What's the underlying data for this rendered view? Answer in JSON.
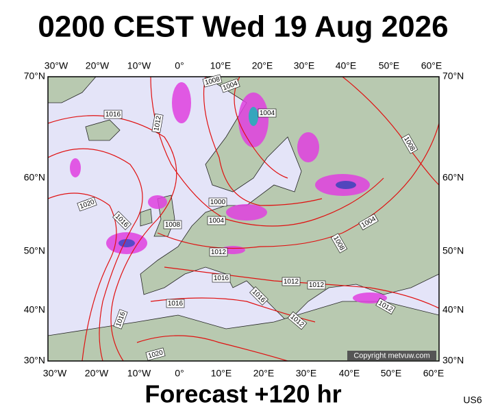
{
  "header": {
    "title": "0200 CEST Wed 19 Aug 2026"
  },
  "map": {
    "lon_labels": [
      "30°W",
      "20°W",
      "10°W",
      "0°",
      "10°E",
      "20°E",
      "30°E",
      "40°E",
      "50°E",
      "60°E"
    ],
    "lat_labels": [
      "70°N",
      "60°N",
      "50°N",
      "40°N",
      "30°N"
    ],
    "isobar_labels": [
      "1016",
      "1012",
      "1008",
      "1004",
      "1004",
      "1008",
      "1020",
      "1016",
      "1008",
      "1000",
      "1004",
      "1012",
      "1004",
      "1008",
      "1016",
      "1012",
      "1012",
      "1016",
      "1016",
      "1012",
      "1012",
      "1016",
      "1020"
    ],
    "copyright": "Copyright metvuw.com"
  },
  "footer": {
    "forecast": "Forecast +120 hr",
    "code": "US6"
  }
}
